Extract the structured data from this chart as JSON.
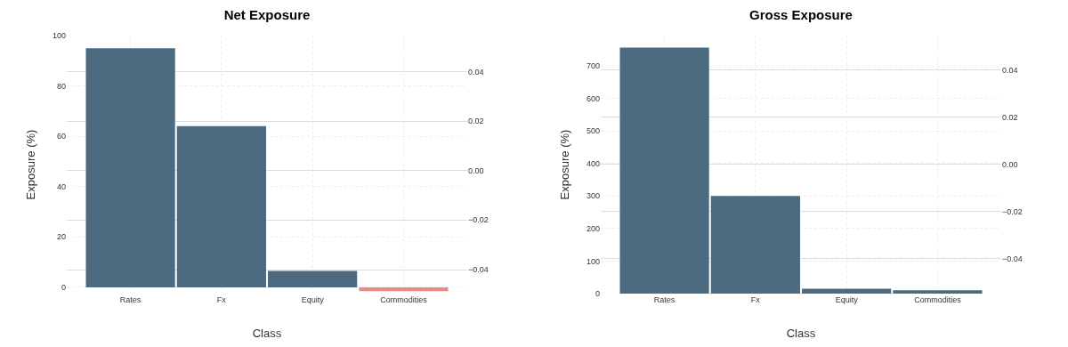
{
  "chart_data": [
    {
      "type": "bar",
      "title": "Net Exposure",
      "xlabel": "Class",
      "ylabel": "Exposure (%)",
      "categories": [
        "Rates",
        "Fx",
        "Equity",
        "Commodities"
      ],
      "values": [
        95,
        64,
        6.5,
        -1.5
      ],
      "colors": [
        "#4d6b80",
        "#4d6b80",
        "#4d6b80",
        "#e88a8a"
      ],
      "ylim": [
        -2.5,
        100
      ],
      "yticks": [
        0,
        20,
        40,
        60,
        80,
        100
      ],
      "y2lim": [
        -0.0497,
        0.0545
      ],
      "y2ticks": [
        {
          "value": -0.04,
          "label": "−0.04"
        },
        {
          "value": -0.02,
          "label": "−0.02"
        },
        {
          "value": 0,
          "label": "0.00"
        },
        {
          "value": 0.02,
          "label": "0.02"
        },
        {
          "value": 0.04,
          "label": "0.04"
        }
      ],
      "grid": true
    },
    {
      "type": "bar",
      "title": "Gross Exposure",
      "xlabel": "Class",
      "ylabel": "Exposure (%)",
      "categories": [
        "Rates",
        "Fx",
        "Equity",
        "Commodities"
      ],
      "values": [
        756,
        300,
        15,
        10
      ],
      "colors": [
        "#4d6b80",
        "#4d6b80",
        "#4d6b80",
        "#4d6b80"
      ],
      "ylim": [
        0,
        793
      ],
      "yticks": [
        0,
        100,
        200,
        300,
        400,
        500,
        600,
        700
      ],
      "y2lim": [
        -0.0548,
        0.0545
      ],
      "y2ticks": [
        {
          "value": -0.04,
          "label": "−0.04"
        },
        {
          "value": -0.02,
          "label": "−0.02"
        },
        {
          "value": 0,
          "label": "0.00"
        },
        {
          "value": 0.02,
          "label": "0.02"
        },
        {
          "value": 0.04,
          "label": "0.04"
        }
      ],
      "grid": true
    }
  ]
}
